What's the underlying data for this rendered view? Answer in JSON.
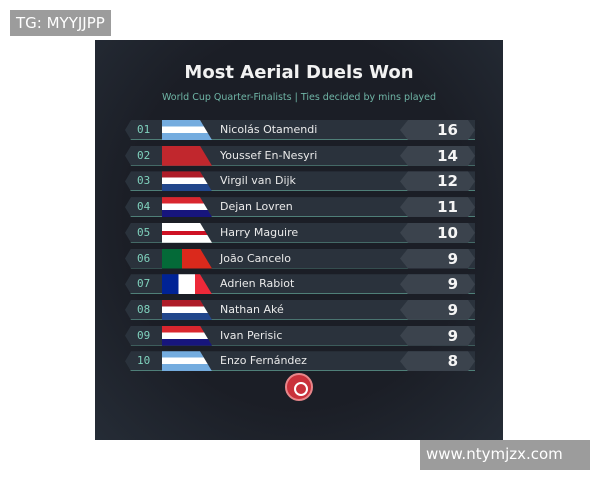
{
  "watermarks": {
    "top_left": "TG: MYYJJPP",
    "bottom_right": "www.ntymjzx.com"
  },
  "title": "Most Aerial Duels Won",
  "subtitle": "World Cup Quarter-Finalists | Ties decided by mins played",
  "rows": [
    {
      "rank": "01",
      "name": "Nicolás Otamendi",
      "value": "16",
      "flag": "argentina"
    },
    {
      "rank": "02",
      "name": "Youssef En-Nesyri",
      "value": "14",
      "flag": "morocco"
    },
    {
      "rank": "03",
      "name": "Virgil van Dijk",
      "value": "12",
      "flag": "netherlands"
    },
    {
      "rank": "04",
      "name": "Dejan Lovren",
      "value": "11",
      "flag": "croatia"
    },
    {
      "rank": "05",
      "name": "Harry Maguire",
      "value": "10",
      "flag": "england"
    },
    {
      "rank": "06",
      "name": "João Cancelo",
      "value": "9",
      "flag": "portugal"
    },
    {
      "rank": "07",
      "name": "Adrien Rabiot",
      "value": "9",
      "flag": "france"
    },
    {
      "rank": "08",
      "name": "Nathan Aké",
      "value": "9",
      "flag": "netherlands"
    },
    {
      "rank": "09",
      "name": "Ivan Perisic",
      "value": "9",
      "flag": "croatia"
    },
    {
      "rank": "10",
      "name": "Enzo Fernández",
      "value": "8",
      "flag": "argentina"
    }
  ]
}
